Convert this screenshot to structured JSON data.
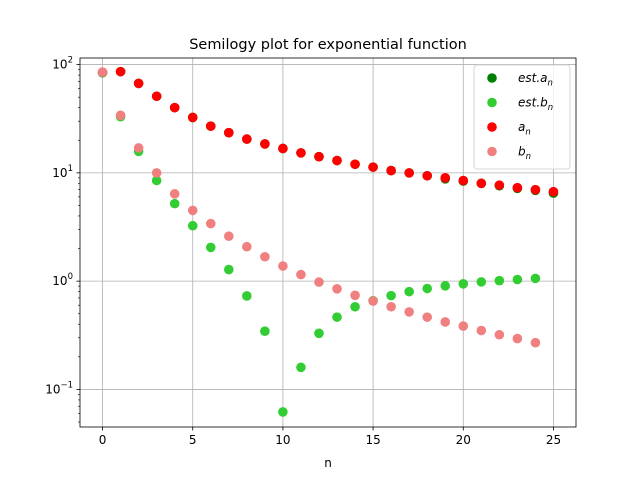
{
  "chart_data": {
    "type": "scatter",
    "title": "Semilogy plot for exponential function",
    "xlabel": "n",
    "ylabel": "",
    "yscale": "log",
    "xlim": [
      -1.25,
      26.25
    ],
    "ylim": [
      0.045,
      115
    ],
    "grid": true,
    "legend_position": "top-right",
    "x_ticks": [
      0,
      5,
      10,
      15,
      20,
      25
    ],
    "x_tick_labels": [
      "0",
      "5",
      "10",
      "15",
      "20",
      "25"
    ],
    "y_ticks": [
      0.1,
      1,
      10,
      100
    ],
    "y_tick_labels": [
      {
        "base": "10",
        "exp": "−1"
      },
      {
        "base": "10",
        "exp": "0"
      },
      {
        "base": "10",
        "exp": "1"
      },
      {
        "base": "10",
        "exp": "2"
      }
    ],
    "series": [
      {
        "name": "est.a",
        "name_sub": "n",
        "color": "#008000",
        "points": [
          [
            0,
            84
          ],
          [
            1,
            86
          ],
          [
            2,
            67
          ],
          [
            3,
            51
          ],
          [
            4,
            40
          ],
          [
            5,
            32.5
          ],
          [
            6,
            27
          ],
          [
            7,
            23.5
          ],
          [
            8,
            20.5
          ],
          [
            9,
            18.5
          ],
          [
            10,
            16.8
          ],
          [
            11,
            15.3
          ],
          [
            12,
            14.1
          ],
          [
            13,
            13
          ],
          [
            14,
            12
          ],
          [
            15,
            11.3
          ],
          [
            16,
            10.5
          ],
          [
            17,
            10
          ],
          [
            18,
            9.4
          ],
          [
            19,
            8.8
          ],
          [
            20,
            8.4
          ],
          [
            21,
            8
          ],
          [
            22,
            7.6
          ],
          [
            23,
            7.2
          ],
          [
            24,
            6.9
          ],
          [
            25,
            6.5
          ]
        ]
      },
      {
        "name": "est.b",
        "name_sub": "n",
        "color": "#32cd32",
        "points": [
          [
            0,
            84
          ],
          [
            1,
            33
          ],
          [
            2,
            15.8
          ],
          [
            3,
            8.5
          ],
          [
            4,
            5.2
          ],
          [
            5,
            3.25
          ],
          [
            6,
            2.05
          ],
          [
            7,
            1.28
          ],
          [
            8,
            0.73
          ],
          [
            9,
            0.345
          ],
          [
            10,
            0.062
          ],
          [
            11,
            0.16
          ],
          [
            12,
            0.33
          ],
          [
            13,
            0.465
          ],
          [
            14,
            0.58
          ],
          [
            15,
            0.66
          ],
          [
            16,
            0.735
          ],
          [
            17,
            0.8
          ],
          [
            18,
            0.855
          ],
          [
            19,
            0.905
          ],
          [
            20,
            0.945
          ],
          [
            21,
            0.985
          ],
          [
            22,
            1.01
          ],
          [
            23,
            1.035
          ],
          [
            24,
            1.06
          ]
        ]
      },
      {
        "name": "a",
        "name_sub": "n",
        "color": "#ff0000",
        "points": [
          [
            0,
            85
          ],
          [
            1,
            86
          ],
          [
            2,
            67
          ],
          [
            3,
            51
          ],
          [
            4,
            40
          ],
          [
            5,
            32.5
          ],
          [
            6,
            27
          ],
          [
            7,
            23.5
          ],
          [
            8,
            20.5
          ],
          [
            9,
            18.5
          ],
          [
            10,
            16.8
          ],
          [
            11,
            15.3
          ],
          [
            12,
            14.1
          ],
          [
            13,
            13
          ],
          [
            14,
            12
          ],
          [
            15,
            11.3
          ],
          [
            16,
            10.5
          ],
          [
            17,
            10
          ],
          [
            18,
            9.4
          ],
          [
            19,
            9
          ],
          [
            20,
            8.5
          ],
          [
            21,
            8
          ],
          [
            22,
            7.7
          ],
          [
            23,
            7.3
          ],
          [
            24,
            7
          ],
          [
            25,
            6.7
          ]
        ]
      },
      {
        "name": "b",
        "name_sub": "n",
        "color": "#f08080",
        "points": [
          [
            0,
            85
          ],
          [
            1,
            34
          ],
          [
            2,
            17
          ],
          [
            3,
            10
          ],
          [
            4,
            6.4
          ],
          [
            5,
            4.5
          ],
          [
            6,
            3.4
          ],
          [
            7,
            2.6
          ],
          [
            8,
            2.08
          ],
          [
            9,
            1.68
          ],
          [
            10,
            1.38
          ],
          [
            11,
            1.15
          ],
          [
            12,
            0.98
          ],
          [
            13,
            0.85
          ],
          [
            14,
            0.74
          ],
          [
            15,
            0.655
          ],
          [
            16,
            0.58
          ],
          [
            17,
            0.52
          ],
          [
            18,
            0.465
          ],
          [
            19,
            0.42
          ],
          [
            20,
            0.385
          ],
          [
            21,
            0.35
          ],
          [
            22,
            0.32
          ],
          [
            23,
            0.295
          ],
          [
            24,
            0.27
          ]
        ]
      }
    ]
  }
}
